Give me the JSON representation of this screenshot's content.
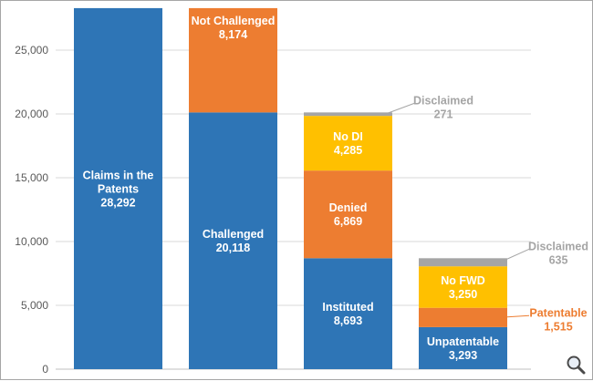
{
  "chart_data": {
    "type": "bar",
    "stacked": true,
    "ylim": [
      0,
      28000
    ],
    "y_ticks": [
      0,
      5000,
      10000,
      15000,
      20000,
      25000
    ],
    "y_tick_labels": [
      "0",
      "5,000",
      "10,000",
      "15,000",
      "20,000",
      "25,000"
    ],
    "grid": true,
    "bars": [
      {
        "id": "claims",
        "segments": [
          {
            "id": "claims-in-patents",
            "name": "Claims in the Patents",
            "lines": [
              "Claims in the",
              "Patents",
              "28,292"
            ],
            "value": 28292,
            "color": "#2e75b6",
            "label": "inside"
          }
        ]
      },
      {
        "id": "challenged",
        "segments": [
          {
            "id": "challenged",
            "name": "Challenged",
            "lines": [
              "Challenged",
              "20,118"
            ],
            "value": 20118,
            "color": "#2e75b6",
            "label": "inside"
          },
          {
            "id": "not-challenged",
            "name": "Not Challenged",
            "lines": [
              "Not Challenged",
              "8,174"
            ],
            "value": 8174,
            "color": "#ed7d31",
            "label": "inside",
            "label_pos": "top"
          }
        ]
      },
      {
        "id": "institution",
        "segments": [
          {
            "id": "instituted",
            "name": "Instituted",
            "lines": [
              "Instituted",
              "8,693"
            ],
            "value": 8693,
            "color": "#2e75b6",
            "label": "inside"
          },
          {
            "id": "denied",
            "name": "Denied",
            "lines": [
              "Denied",
              "6,869"
            ],
            "value": 6869,
            "color": "#ed7d31",
            "label": "inside"
          },
          {
            "id": "no-di",
            "name": "No DI",
            "lines": [
              "No DI",
              "4,285"
            ],
            "value": 4285,
            "color": "#ffc000",
            "label": "inside"
          },
          {
            "id": "disclaimed-1",
            "name": "Disclaimed",
            "lines": [
              "Disclaimed",
              "271"
            ],
            "value": 271,
            "color": "#a5a5a5",
            "label": "outside",
            "label_color": "#a5a5a5"
          }
        ]
      },
      {
        "id": "outcome",
        "segments": [
          {
            "id": "unpatentable",
            "name": "Unpatentable",
            "lines": [
              "Unpatentable",
              "3,293"
            ],
            "value": 3293,
            "color": "#2e75b6",
            "label": "inside"
          },
          {
            "id": "patentable",
            "name": "Patentable",
            "lines": [
              "Patentable",
              "1,515"
            ],
            "value": 1515,
            "color": "#ed7d31",
            "label": "outside",
            "label_color": "#ed7d31"
          },
          {
            "id": "no-fwd",
            "name": "No FWD",
            "lines": [
              "No FWD",
              "3,250"
            ],
            "value": 3250,
            "color": "#ffc000",
            "label": "inside"
          },
          {
            "id": "disclaimed-2",
            "name": "Disclaimed",
            "lines": [
              "Disclaimed",
              "635"
            ],
            "value": 635,
            "color": "#a5a5a5",
            "label": "outside",
            "label_color": "#a5a5a5"
          }
        ]
      }
    ]
  },
  "ui": {
    "zoom_icon": "magnifier-icon"
  }
}
